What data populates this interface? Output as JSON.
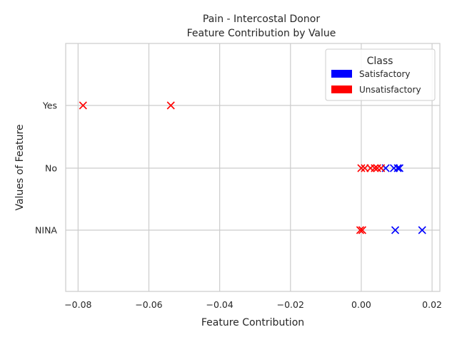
{
  "chart_data": {
    "type": "scatter",
    "title": "Pain - Intercostal Donor",
    "subtitle": "Feature Contribution by Value",
    "xlabel": "Feature Contribution",
    "ylabel": "Values of Feature",
    "xlim": [
      -0.0835,
      0.0222
    ],
    "x_ticks": [
      -0.08,
      -0.06,
      -0.04,
      -0.02,
      0.0,
      0.02
    ],
    "x_tick_labels": [
      "−0.08",
      "−0.06",
      "−0.04",
      "−0.02",
      "0.00",
      "0.02"
    ],
    "categories": [
      "Yes",
      "No",
      "NINA"
    ],
    "grid": true,
    "marker": "x",
    "legend": {
      "title": "Class",
      "placement": "top-right",
      "entries": [
        {
          "label": "Satisfactory",
          "color": "#0000ff"
        },
        {
          "label": "Unsatisfactory",
          "color": "#ff0000"
        }
      ]
    },
    "series": [
      {
        "name": "Satisfactory",
        "color": "#0000ff",
        "points": [
          {
            "x": 0.0069,
            "y": "No"
          },
          {
            "x": 0.0092,
            "y": "No"
          },
          {
            "x": 0.0103,
            "y": "No"
          },
          {
            "x": 0.0108,
            "y": "No"
          },
          {
            "x": 0.0096,
            "y": "NINA"
          },
          {
            "x": 0.0172,
            "y": "NINA"
          }
        ]
      },
      {
        "name": "Unsatisfactory",
        "color": "#ff0000",
        "points": [
          {
            "x": -0.0786,
            "y": "Yes"
          },
          {
            "x": -0.0538,
            "y": "Yes"
          },
          {
            "x": 0.0,
            "y": "No"
          },
          {
            "x": 0.001,
            "y": "No"
          },
          {
            "x": 0.0026,
            "y": "No"
          },
          {
            "x": 0.0038,
            "y": "No"
          },
          {
            "x": 0.0045,
            "y": "No"
          },
          {
            "x": 0.0056,
            "y": "No"
          },
          {
            "x": -0.0003,
            "y": "NINA"
          },
          {
            "x": 0.0003,
            "y": "NINA"
          }
        ]
      }
    ]
  }
}
